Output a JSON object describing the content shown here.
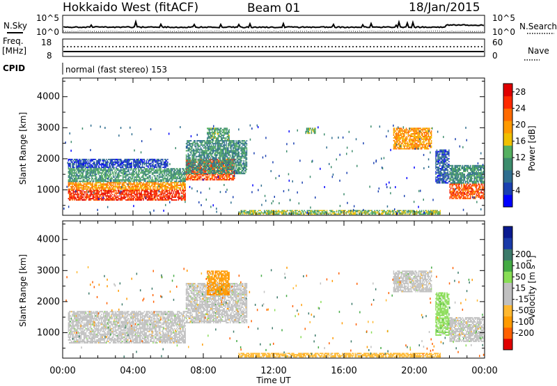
{
  "header": {
    "station": "Hokkaido West (fitACF)",
    "beam": "Beam 01",
    "date": "18/Jan/2015"
  },
  "noise_panel": {
    "left_label": "N.Sky",
    "right_label": "N.Search",
    "left_ticks": [
      "10^5",
      "10^0"
    ],
    "right_ticks": [
      "10^5",
      "10^0"
    ]
  },
  "freq_panel": {
    "left_label_line1": "Freq.",
    "left_label_line2": "[MHz]",
    "right_label": "Nave",
    "left_ticks": [
      "18",
      "8"
    ],
    "right_ticks": [
      "60",
      "0"
    ]
  },
  "cpid": {
    "label": "CPID",
    "text": "normal (fast stereo) 153"
  },
  "colors": {
    "power_scale": [
      "#0000ff",
      "#1a40b0",
      "#2f6e8f",
      "#3c8c6c",
      "#55b060",
      "#f0c000",
      "#ff9a00",
      "#ff6a00",
      "#ff2a00",
      "#e00000"
    ],
    "velocity_scale": [
      "#e00000",
      "#ff6000",
      "#ff9a00",
      "#ffb830",
      "#c0c0c0",
      "#c0c0c0",
      "#88dd55",
      "#44aa44",
      "#3c7a6a",
      "#1a3aa8",
      "#0a1a90"
    ],
    "ground_scatter": "#c0c0c0"
  },
  "chart_data": [
    {
      "type": "heatmap",
      "name": "power",
      "ylabel": "Slant Range [km]",
      "yticks": [
        1000,
        2000,
        3000,
        4000
      ],
      "ylim": [
        180,
        4600
      ],
      "xlim": [
        0,
        24
      ],
      "xticks": [
        "00:00",
        "04:00",
        "08:00",
        "12:00",
        "16:00",
        "20:00",
        "00:00"
      ],
      "colorbar": {
        "label": "Power [dB]",
        "ticks": [
          4,
          8,
          12,
          16,
          20,
          24,
          28
        ],
        "range": [
          0,
          30
        ]
      },
      "regions": [
        {
          "t0": 0.3,
          "t1": 7.0,
          "r0": 650,
          "r1": 1000,
          "value": 26
        },
        {
          "t0": 0.3,
          "t1": 7.0,
          "r0": 1000,
          "r1": 1250,
          "value": 20
        },
        {
          "t0": 0.3,
          "t1": 7.0,
          "r0": 1250,
          "r1": 1700,
          "value": 11
        },
        {
          "t0": 0.3,
          "t1": 6.0,
          "r0": 1700,
          "r1": 2000,
          "value": 5
        },
        {
          "t0": 7.0,
          "t1": 9.8,
          "r0": 1300,
          "r1": 2000,
          "value": 24
        },
        {
          "t0": 7.0,
          "t1": 10.5,
          "r0": 1500,
          "r1": 2600,
          "value": 10
        },
        {
          "t0": 8.2,
          "t1": 9.5,
          "r0": 2600,
          "r1": 3000,
          "value": 12
        },
        {
          "t0": 13.8,
          "t1": 14.4,
          "r0": 2800,
          "r1": 3000,
          "value": 12
        },
        {
          "t0": 18.8,
          "t1": 21.0,
          "r0": 2300,
          "r1": 3000,
          "value": 20
        },
        {
          "t0": 21.2,
          "t1": 22.0,
          "r0": 1200,
          "r1": 2300,
          "value": 6
        },
        {
          "t0": 22.0,
          "t1": 24.0,
          "r0": 700,
          "r1": 1200,
          "value": 24
        },
        {
          "t0": 22.0,
          "t1": 24.0,
          "r0": 1200,
          "r1": 1800,
          "value": 10
        },
        {
          "t0": 10.0,
          "t1": 21.5,
          "r0": 200,
          "r1": 350,
          "value": 14
        }
      ]
    },
    {
      "type": "heatmap",
      "name": "velocity",
      "ylabel": "Slant Range [km]",
      "yticks": [
        1000,
        2000,
        3000,
        4000
      ],
      "ylim": [
        180,
        4600
      ],
      "xlim": [
        0,
        24
      ],
      "xticks": [
        "00:00",
        "04:00",
        "08:00",
        "12:00",
        "16:00",
        "20:00",
        "00:00"
      ],
      "xlabel": "Time UT",
      "colorbar": {
        "label": "Velocity [m s",
        "label_sup": "-1",
        "label_end": "]",
        "ticks": [
          -200,
          -100,
          -50,
          -15,
          15,
          50,
          100,
          200
        ],
        "tick_labels": [
          "-200",
          "-100",
          "-50",
          "-15",
          "15",
          "50",
          "100",
          "200"
        ]
      },
      "regions": [
        {
          "t0": 0.3,
          "t1": 7.0,
          "r0": 650,
          "r1": 1700,
          "value": 0
        },
        {
          "t0": 7.0,
          "t1": 10.5,
          "r0": 1300,
          "r1": 2600,
          "value": 0
        },
        {
          "t0": 8.2,
          "t1": 9.5,
          "r0": 2200,
          "r1": 3000,
          "value": -60
        },
        {
          "t0": 18.8,
          "t1": 21.0,
          "r0": 2300,
          "r1": 3000,
          "value": 0
        },
        {
          "t0": 21.2,
          "t1": 22.0,
          "r0": 900,
          "r1": 2300,
          "value": 40
        },
        {
          "t0": 22.0,
          "t1": 24.0,
          "r0": 700,
          "r1": 1500,
          "value": 0
        },
        {
          "t0": 10.0,
          "t1": 21.5,
          "r0": 200,
          "r1": 350,
          "value": -45
        }
      ]
    }
  ]
}
